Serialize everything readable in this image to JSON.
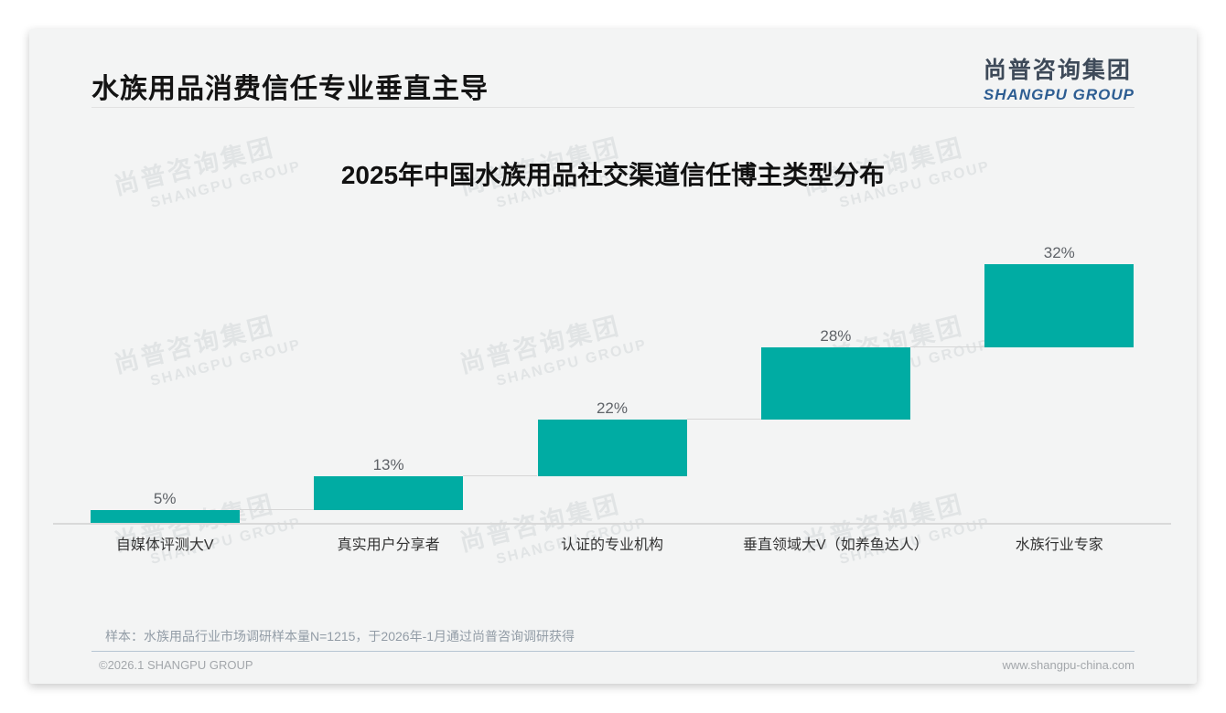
{
  "header": {
    "title": "水族用品消费信任专业垂直主导",
    "logo_cn": "尚普咨询集团",
    "logo_en": "SHANGPU GROUP"
  },
  "watermark": {
    "cn": "尚普咨询集团",
    "en": "SHANGPU GROUP"
  },
  "chart_data": {
    "type": "bar",
    "subtype": "stepped-waterfall",
    "title": "2025年中国水族用品社交渠道信任博主类型分布",
    "categories": [
      "自媒体评测大V",
      "真实用户分享者",
      "认证的专业机构",
      "垂直领域大V（如养鱼达人）",
      "水族行业专家"
    ],
    "values": [
      5,
      13,
      22,
      28,
      32
    ],
    "cumulative_start": [
      0,
      5,
      18,
      40,
      68
    ],
    "labels": [
      "5%",
      "13%",
      "22%",
      "28%",
      "32%"
    ],
    "xlabel": "",
    "ylabel": "",
    "ylim": [
      0,
      100
    ],
    "grid": false,
    "legend": false,
    "bar_color": "#00ACA3",
    "connector_color": "#d6d6d6",
    "axis_color": "#d9d9d9",
    "value_label_color": "#5f6368"
  },
  "footnote": {
    "text": "样本：水族用品行业市场调研样本量N=1215，于2026年-1月通过尚普咨询调研获得"
  },
  "footer": {
    "left": "©2026.1 SHANGPU GROUP",
    "right": "www.shangpu-china.com"
  },
  "colors": {
    "accent_teal": "#00ACA3",
    "logo_blue": "#2d5d92",
    "slide_bg": "#f3f4f4",
    "note_divider": "#b7c5d2"
  }
}
